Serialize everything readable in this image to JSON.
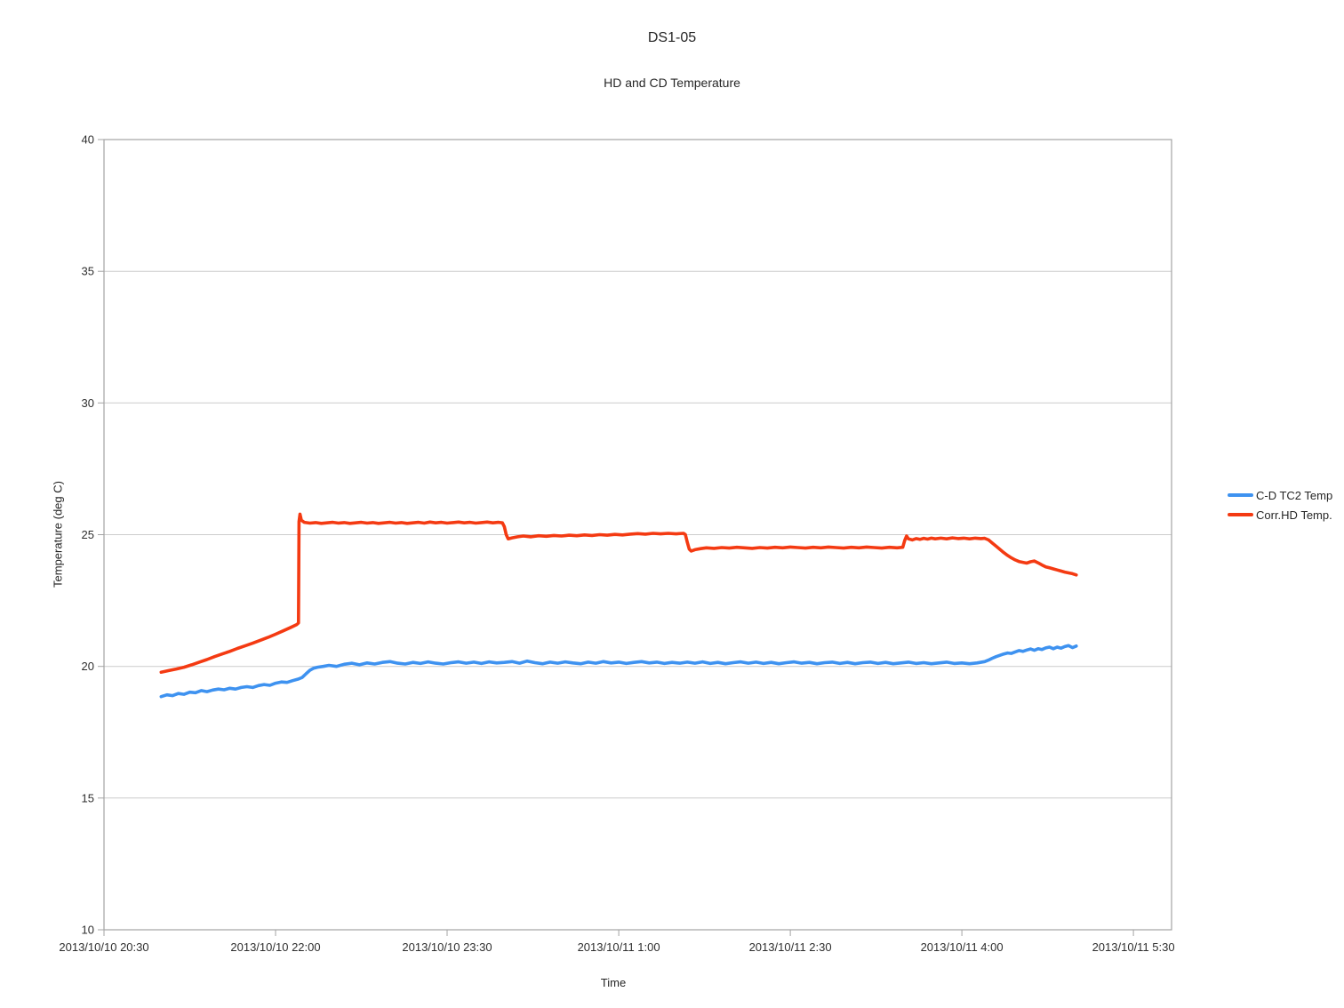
{
  "title": "DS1-05",
  "subtitle": "HD and CD Temperature",
  "axes": {
    "y_title": "Temperature (deg C)",
    "x_title": "Time"
  },
  "legend": [
    {
      "label": "C-D TC2 Temp",
      "color": "#3e92f0"
    },
    {
      "label": "Corr.HD Temp.",
      "color": "#f43a12"
    }
  ],
  "chart_data": {
    "type": "line",
    "title": "DS1-05",
    "subtitle": "HD and CD Temperature",
    "xlabel": "Time",
    "ylabel": "Temperature (deg C)",
    "ylim": [
      10,
      40
    ],
    "yticks": [
      10,
      15,
      20,
      25,
      30,
      35,
      40
    ],
    "grid": true,
    "legend_position": "right",
    "colors": {
      "grid": "#cccccc",
      "axis": "#a3a3a3",
      "tick_text": "#2e2e2e"
    },
    "x_axis": {
      "unit": "minutes after 2013/10/10 20:30",
      "range": [
        0,
        560
      ],
      "ticks": [
        {
          "t": 0,
          "label": "2013/10/10 20:30"
        },
        {
          "t": 90,
          "label": "2013/10/10 22:00"
        },
        {
          "t": 180,
          "label": "2013/10/10 23:30"
        },
        {
          "t": 270,
          "label": "2013/10/11 1:00"
        },
        {
          "t": 360,
          "label": "2013/10/11 2:30"
        },
        {
          "t": 450,
          "label": "2013/10/11 4:00"
        },
        {
          "t": 540,
          "label": "2013/10/11 5:30"
        }
      ]
    },
    "series": [
      {
        "name": "C-D TC2 Temp",
        "color": "#3e92f0",
        "points": [
          [
            30,
            18.85
          ],
          [
            33,
            18.92
          ],
          [
            36,
            18.89
          ],
          [
            39,
            18.97
          ],
          [
            42,
            18.94
          ],
          [
            45,
            19.02
          ],
          [
            48,
            19.0
          ],
          [
            51,
            19.08
          ],
          [
            54,
            19.04
          ],
          [
            57,
            19.1
          ],
          [
            60,
            19.14
          ],
          [
            63,
            19.11
          ],
          [
            66,
            19.17
          ],
          [
            69,
            19.14
          ],
          [
            72,
            19.2
          ],
          [
            75,
            19.23
          ],
          [
            78,
            19.2
          ],
          [
            81,
            19.27
          ],
          [
            84,
            19.31
          ],
          [
            87,
            19.28
          ],
          [
            90,
            19.36
          ],
          [
            93,
            19.41
          ],
          [
            96,
            19.39
          ],
          [
            99,
            19.46
          ],
          [
            102,
            19.52
          ],
          [
            104,
            19.58
          ],
          [
            106,
            19.72
          ],
          [
            108,
            19.85
          ],
          [
            110,
            19.93
          ],
          [
            112,
            19.97
          ],
          [
            115,
            20.0
          ],
          [
            118,
            20.04
          ],
          [
            122,
            20.0
          ],
          [
            126,
            20.08
          ],
          [
            130,
            20.12
          ],
          [
            134,
            20.06
          ],
          [
            138,
            20.13
          ],
          [
            142,
            20.09
          ],
          [
            146,
            20.15
          ],
          [
            150,
            20.18
          ],
          [
            154,
            20.12
          ],
          [
            158,
            20.09
          ],
          [
            162,
            20.15
          ],
          [
            166,
            20.11
          ],
          [
            170,
            20.17
          ],
          [
            174,
            20.12
          ],
          [
            178,
            20.09
          ],
          [
            182,
            20.14
          ],
          [
            186,
            20.17
          ],
          [
            190,
            20.12
          ],
          [
            194,
            20.16
          ],
          [
            198,
            20.11
          ],
          [
            202,
            20.17
          ],
          [
            206,
            20.13
          ],
          [
            210,
            20.15
          ],
          [
            214,
            20.18
          ],
          [
            218,
            20.12
          ],
          [
            222,
            20.2
          ],
          [
            226,
            20.14
          ],
          [
            230,
            20.1
          ],
          [
            234,
            20.16
          ],
          [
            238,
            20.12
          ],
          [
            242,
            20.17
          ],
          [
            246,
            20.13
          ],
          [
            250,
            20.1
          ],
          [
            254,
            20.16
          ],
          [
            258,
            20.12
          ],
          [
            262,
            20.18
          ],
          [
            266,
            20.13
          ],
          [
            270,
            20.16
          ],
          [
            274,
            20.11
          ],
          [
            278,
            20.15
          ],
          [
            282,
            20.18
          ],
          [
            286,
            20.13
          ],
          [
            290,
            20.16
          ],
          [
            294,
            20.11
          ],
          [
            298,
            20.15
          ],
          [
            302,
            20.12
          ],
          [
            306,
            20.16
          ],
          [
            310,
            20.12
          ],
          [
            314,
            20.17
          ],
          [
            318,
            20.11
          ],
          [
            322,
            20.15
          ],
          [
            326,
            20.1
          ],
          [
            330,
            20.14
          ],
          [
            334,
            20.17
          ],
          [
            338,
            20.12
          ],
          [
            342,
            20.16
          ],
          [
            346,
            20.11
          ],
          [
            350,
            20.15
          ],
          [
            354,
            20.1
          ],
          [
            358,
            20.14
          ],
          [
            362,
            20.17
          ],
          [
            366,
            20.12
          ],
          [
            370,
            20.15
          ],
          [
            374,
            20.1
          ],
          [
            378,
            20.14
          ],
          [
            382,
            20.16
          ],
          [
            386,
            20.11
          ],
          [
            390,
            20.15
          ],
          [
            394,
            20.1
          ],
          [
            398,
            20.14
          ],
          [
            402,
            20.16
          ],
          [
            406,
            20.11
          ],
          [
            410,
            20.15
          ],
          [
            414,
            20.1
          ],
          [
            418,
            20.13
          ],
          [
            422,
            20.16
          ],
          [
            426,
            20.11
          ],
          [
            430,
            20.14
          ],
          [
            434,
            20.1
          ],
          [
            438,
            20.13
          ],
          [
            442,
            20.16
          ],
          [
            446,
            20.11
          ],
          [
            450,
            20.13
          ],
          [
            454,
            20.1
          ],
          [
            458,
            20.13
          ],
          [
            462,
            20.18
          ],
          [
            464,
            20.24
          ],
          [
            466,
            20.31
          ],
          [
            468,
            20.37
          ],
          [
            470,
            20.42
          ],
          [
            472,
            20.47
          ],
          [
            474,
            20.51
          ],
          [
            476,
            20.49
          ],
          [
            478,
            20.55
          ],
          [
            480,
            20.6
          ],
          [
            482,
            20.57
          ],
          [
            484,
            20.62
          ],
          [
            486,
            20.66
          ],
          [
            488,
            20.61
          ],
          [
            490,
            20.67
          ],
          [
            492,
            20.64
          ],
          [
            494,
            20.7
          ],
          [
            496,
            20.73
          ],
          [
            498,
            20.67
          ],
          [
            500,
            20.73
          ],
          [
            502,
            20.69
          ],
          [
            504,
            20.75
          ],
          [
            506,
            20.79
          ],
          [
            508,
            20.71
          ],
          [
            510,
            20.77
          ]
        ]
      },
      {
        "name": "Corr.HD Temp.",
        "color": "#f43a12",
        "points": [
          [
            30,
            19.78
          ],
          [
            34,
            19.84
          ],
          [
            38,
            19.9
          ],
          [
            42,
            19.97
          ],
          [
            46,
            20.06
          ],
          [
            50,
            20.16
          ],
          [
            54,
            20.26
          ],
          [
            58,
            20.37
          ],
          [
            62,
            20.47
          ],
          [
            66,
            20.57
          ],
          [
            70,
            20.68
          ],
          [
            74,
            20.78
          ],
          [
            78,
            20.88
          ],
          [
            82,
            20.99
          ],
          [
            86,
            21.1
          ],
          [
            90,
            21.22
          ],
          [
            94,
            21.35
          ],
          [
            98,
            21.48
          ],
          [
            101,
            21.58
          ],
          [
            102,
            21.65
          ],
          [
            102.3,
            25.5
          ],
          [
            102.8,
            25.78
          ],
          [
            103.5,
            25.55
          ],
          [
            105,
            25.47
          ],
          [
            108,
            25.44
          ],
          [
            111,
            25.46
          ],
          [
            114,
            25.43
          ],
          [
            117,
            25.45
          ],
          [
            120,
            25.47
          ],
          [
            123,
            25.44
          ],
          [
            126,
            25.46
          ],
          [
            129,
            25.43
          ],
          [
            132,
            25.45
          ],
          [
            135,
            25.47
          ],
          [
            138,
            25.44
          ],
          [
            141,
            25.46
          ],
          [
            144,
            25.43
          ],
          [
            147,
            25.45
          ],
          [
            150,
            25.47
          ],
          [
            153,
            25.44
          ],
          [
            156,
            25.46
          ],
          [
            159,
            25.43
          ],
          [
            162,
            25.45
          ],
          [
            165,
            25.47
          ],
          [
            168,
            25.44
          ],
          [
            171,
            25.48
          ],
          [
            174,
            25.45
          ],
          [
            177,
            25.47
          ],
          [
            180,
            25.44
          ],
          [
            183,
            25.46
          ],
          [
            186,
            25.48
          ],
          [
            189,
            25.45
          ],
          [
            192,
            25.47
          ],
          [
            195,
            25.44
          ],
          [
            198,
            25.46
          ],
          [
            201,
            25.48
          ],
          [
            204,
            25.45
          ],
          [
            207,
            25.47
          ],
          [
            209,
            25.45
          ],
          [
            210,
            25.3
          ],
          [
            211,
            25.0
          ],
          [
            212,
            24.84
          ],
          [
            214,
            24.88
          ],
          [
            217,
            24.92
          ],
          [
            220,
            24.95
          ],
          [
            224,
            24.92
          ],
          [
            228,
            24.96
          ],
          [
            232,
            24.94
          ],
          [
            236,
            24.97
          ],
          [
            240,
            24.95
          ],
          [
            244,
            24.98
          ],
          [
            248,
            24.96
          ],
          [
            252,
            24.99
          ],
          [
            256,
            24.97
          ],
          [
            260,
            25.0
          ],
          [
            264,
            24.98
          ],
          [
            268,
            25.01
          ],
          [
            272,
            24.99
          ],
          [
            276,
            25.02
          ],
          [
            280,
            25.04
          ],
          [
            284,
            25.02
          ],
          [
            288,
            25.05
          ],
          [
            292,
            25.03
          ],
          [
            296,
            25.05
          ],
          [
            300,
            25.03
          ],
          [
            304,
            25.05
          ],
          [
            305,
            25.0
          ],
          [
            306,
            24.7
          ],
          [
            307,
            24.45
          ],
          [
            308,
            24.38
          ],
          [
            310,
            24.43
          ],
          [
            313,
            24.47
          ],
          [
            316,
            24.5
          ],
          [
            320,
            24.48
          ],
          [
            324,
            24.51
          ],
          [
            328,
            24.49
          ],
          [
            332,
            24.52
          ],
          [
            336,
            24.5
          ],
          [
            340,
            24.48
          ],
          [
            344,
            24.51
          ],
          [
            348,
            24.49
          ],
          [
            352,
            24.52
          ],
          [
            356,
            24.5
          ],
          [
            360,
            24.53
          ],
          [
            364,
            24.51
          ],
          [
            368,
            24.49
          ],
          [
            372,
            24.52
          ],
          [
            376,
            24.5
          ],
          [
            380,
            24.53
          ],
          [
            384,
            24.51
          ],
          [
            388,
            24.49
          ],
          [
            392,
            24.52
          ],
          [
            396,
            24.5
          ],
          [
            400,
            24.53
          ],
          [
            404,
            24.51
          ],
          [
            408,
            24.49
          ],
          [
            412,
            24.52
          ],
          [
            416,
            24.5
          ],
          [
            419,
            24.52
          ],
          [
            420,
            24.78
          ],
          [
            421,
            24.95
          ],
          [
            422,
            24.84
          ],
          [
            424,
            24.8
          ],
          [
            426,
            24.85
          ],
          [
            428,
            24.82
          ],
          [
            430,
            24.86
          ],
          [
            432,
            24.83
          ],
          [
            434,
            24.87
          ],
          [
            436,
            24.84
          ],
          [
            439,
            24.87
          ],
          [
            442,
            24.84
          ],
          [
            445,
            24.88
          ],
          [
            448,
            24.85
          ],
          [
            451,
            24.87
          ],
          [
            454,
            24.84
          ],
          [
            457,
            24.87
          ],
          [
            460,
            24.85
          ],
          [
            462,
            24.86
          ],
          [
            464,
            24.8
          ],
          [
            466,
            24.68
          ],
          [
            468,
            24.56
          ],
          [
            470,
            24.44
          ],
          [
            472,
            24.32
          ],
          [
            474,
            24.21
          ],
          [
            476,
            24.12
          ],
          [
            478,
            24.04
          ],
          [
            480,
            23.98
          ],
          [
            482,
            23.95
          ],
          [
            484,
            23.92
          ],
          [
            486,
            23.97
          ],
          [
            488,
            24.0
          ],
          [
            490,
            23.93
          ],
          [
            492,
            23.85
          ],
          [
            494,
            23.78
          ],
          [
            496,
            23.74
          ],
          [
            498,
            23.7
          ],
          [
            500,
            23.66
          ],
          [
            502,
            23.62
          ],
          [
            504,
            23.58
          ],
          [
            506,
            23.55
          ],
          [
            508,
            23.52
          ],
          [
            510,
            23.47
          ]
        ]
      }
    ]
  }
}
